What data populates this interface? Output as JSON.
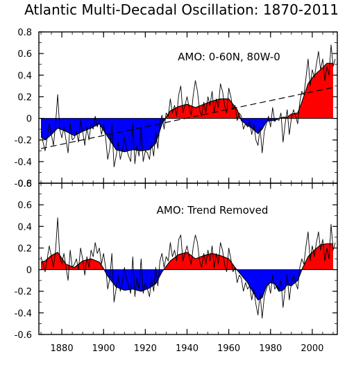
{
  "title": "Atlantic Multi-Decadal Oscillation: 1870-2011",
  "colors": {
    "positive": "#ff0000",
    "negative": "#0000ff",
    "line": "#000000",
    "trend": "#000000"
  },
  "x_ticks": [
    {
      "x": 1880,
      "label": "1880"
    },
    {
      "x": 1900,
      "label": "1900"
    },
    {
      "x": 1920,
      "label": "1920"
    },
    {
      "x": 1940,
      "label": "1940"
    },
    {
      "x": 1960,
      "label": "1960"
    },
    {
      "x": 1980,
      "label": "1980"
    },
    {
      "x": 2000,
      "label": "2000"
    }
  ],
  "chart_data": [
    {
      "type": "area",
      "title": "AMO: 0-60N, 80W-0",
      "xlabel": "",
      "ylabel": "",
      "xlim": [
        1869,
        2012
      ],
      "ylim": [
        -0.6,
        0.8
      ],
      "y_ticks": [
        {
          "y": 0.8,
          "label": "0.8"
        },
        {
          "y": 0.6,
          "label": "0.6"
        },
        {
          "y": 0.4,
          "label": "0.4"
        },
        {
          "y": 0.2,
          "label": "0.2"
        },
        {
          "y": 0,
          "label": "0"
        },
        {
          "y": -0.2,
          "label": "-0.2"
        },
        {
          "y": -0.4,
          "label": "-0.4"
        },
        {
          "y": -0.6,
          "label": "-0.6"
        }
      ],
      "smoothed": {
        "x": [
          1870,
          1872,
          1875,
          1878,
          1882,
          1886,
          1890,
          1894,
          1898,
          1902,
          1906,
          1910,
          1914,
          1918,
          1922,
          1925,
          1928,
          1932,
          1936,
          1940,
          1944,
          1948,
          1952,
          1956,
          1960,
          1964,
          1966,
          1968,
          1971,
          1974,
          1976,
          1978,
          1980,
          1982,
          1984,
          1986,
          1988,
          1990,
          1993,
          1995,
          1998,
          2001,
          2004,
          2007,
          2010
        ],
        "y": [
          -0.17,
          -0.2,
          -0.15,
          -0.09,
          -0.12,
          -0.16,
          -0.12,
          -0.09,
          -0.05,
          -0.17,
          -0.29,
          -0.31,
          -0.29,
          -0.3,
          -0.29,
          -0.23,
          -0.05,
          0.07,
          0.11,
          0.13,
          0.1,
          0.13,
          0.16,
          0.18,
          0.18,
          0.08,
          -0.02,
          -0.05,
          -0.09,
          -0.14,
          -0.1,
          -0.03,
          -0.02,
          -0.02,
          0.0,
          0.01,
          0.01,
          0.04,
          0.05,
          0.15,
          0.32,
          0.4,
          0.45,
          0.51,
          0.51
        ]
      },
      "annual": {
        "x": [
          1870,
          1871,
          1872,
          1873,
          1874,
          1875,
          1876,
          1877,
          1878,
          1879,
          1880,
          1881,
          1882,
          1883,
          1884,
          1885,
          1886,
          1887,
          1888,
          1889,
          1890,
          1891,
          1892,
          1893,
          1894,
          1895,
          1896,
          1897,
          1898,
          1899,
          1900,
          1901,
          1902,
          1903,
          1904,
          1905,
          1906,
          1907,
          1908,
          1909,
          1910,
          1911,
          1912,
          1913,
          1914,
          1915,
          1916,
          1917,
          1918,
          1919,
          1920,
          1921,
          1922,
          1923,
          1924,
          1925,
          1926,
          1927,
          1928,
          1929,
          1930,
          1931,
          1932,
          1933,
          1934,
          1935,
          1936,
          1937,
          1938,
          1939,
          1940,
          1941,
          1942,
          1943,
          1944,
          1945,
          1946,
          1947,
          1948,
          1949,
          1950,
          1951,
          1952,
          1953,
          1954,
          1955,
          1956,
          1957,
          1958,
          1959,
          1960,
          1961,
          1962,
          1963,
          1964,
          1965,
          1966,
          1967,
          1968,
          1969,
          1970,
          1971,
          1972,
          1973,
          1974,
          1975,
          1976,
          1977,
          1978,
          1979,
          1980,
          1981,
          1982,
          1983,
          1984,
          1985,
          1986,
          1987,
          1988,
          1989,
          1990,
          1991,
          1992,
          1993,
          1994,
          1995,
          1996,
          1997,
          1998,
          1999,
          2000,
          2001,
          2002,
          2003,
          2004,
          2005,
          2006,
          2007,
          2008,
          2009,
          2010,
          2011
        ],
        "y": [
          -0.12,
          -0.22,
          -0.3,
          -0.18,
          -0.05,
          -0.15,
          -0.25,
          -0.05,
          0.22,
          -0.1,
          -0.18,
          -0.08,
          -0.2,
          -0.32,
          -0.05,
          -0.2,
          -0.18,
          -0.12,
          -0.22,
          -0.02,
          -0.12,
          -0.25,
          -0.08,
          -0.2,
          -0.05,
          -0.1,
          0.02,
          -0.08,
          -0.02,
          -0.15,
          -0.05,
          -0.18,
          -0.38,
          -0.28,
          -0.05,
          -0.45,
          -0.35,
          -0.22,
          -0.38,
          -0.3,
          -0.18,
          -0.28,
          -0.35,
          -0.4,
          -0.05,
          -0.42,
          -0.25,
          -0.35,
          -0.08,
          -0.4,
          -0.3,
          -0.32,
          -0.38,
          -0.22,
          -0.35,
          -0.12,
          -0.28,
          -0.05,
          0.03,
          -0.1,
          0.05,
          0.02,
          0.18,
          0.05,
          0.12,
          0.02,
          0.22,
          0.3,
          0.05,
          0.12,
          0.2,
          0.1,
          0.03,
          0.22,
          0.35,
          0.25,
          0.08,
          0.02,
          0.15,
          0.05,
          0.2,
          0.12,
          0.25,
          0.05,
          0.18,
          0.1,
          0.32,
          0.25,
          0.12,
          0.05,
          0.28,
          0.2,
          0.08,
          0.12,
          -0.02,
          0.05,
          0.02,
          -0.1,
          -0.05,
          -0.08,
          -0.02,
          -0.15,
          -0.05,
          -0.2,
          -0.25,
          -0.08,
          -0.32,
          -0.12,
          -0.05,
          0.02,
          -0.08,
          0.1,
          -0.03,
          0.0,
          -0.02,
          0.05,
          -0.22,
          -0.05,
          0.08,
          -0.15,
          0.0,
          0.08,
          0.02,
          -0.05,
          0.15,
          0.25,
          0.22,
          0.38,
          0.55,
          0.3,
          0.45,
          0.38,
          0.5,
          0.62,
          0.45,
          0.55,
          0.35,
          0.48,
          0.4,
          0.68,
          0.48,
          0.55
        ]
      },
      "trend": {
        "x": [
          1870,
          2011
        ],
        "y": [
          -0.28,
          0.29
        ]
      }
    },
    {
      "type": "area",
      "title": "AMO: Trend Removed",
      "xlabel": "",
      "ylabel": "",
      "xlim": [
        1869,
        2012
      ],
      "ylim": [
        -0.6,
        0.8
      ],
      "y_ticks": [
        {
          "y": 0.8,
          "label": "0.8"
        },
        {
          "y": 0.6,
          "label": "0.6"
        },
        {
          "y": 0.4,
          "label": "0.4"
        },
        {
          "y": 0.2,
          "label": "0.2"
        },
        {
          "y": 0,
          "label": "0"
        },
        {
          "y": -0.2,
          "label": "-0.2"
        },
        {
          "y": -0.4,
          "label": "-0.4"
        },
        {
          "y": -0.6,
          "label": "-0.6"
        }
      ],
      "smoothed": {
        "x": [
          1870,
          1872,
          1875,
          1878,
          1882,
          1886,
          1890,
          1894,
          1898,
          1900,
          1902,
          1906,
          1910,
          1914,
          1918,
          1922,
          1925,
          1928,
          1932,
          1936,
          1940,
          1944,
          1948,
          1952,
          1956,
          1960,
          1963,
          1966,
          1969,
          1972,
          1974,
          1976,
          1978,
          1980,
          1982,
          1984,
          1986,
          1988,
          1990,
          1993,
          1995,
          1998,
          2001,
          2004,
          2007,
          2010
        ],
        "y": [
          0.07,
          0.08,
          0.13,
          0.16,
          0.05,
          0.02,
          0.08,
          0.1,
          0.07,
          0.01,
          -0.06,
          -0.16,
          -0.19,
          -0.18,
          -0.2,
          -0.17,
          -0.13,
          -0.02,
          0.08,
          0.14,
          0.16,
          0.1,
          0.13,
          0.15,
          0.13,
          0.1,
          0.02,
          -0.05,
          -0.12,
          -0.22,
          -0.28,
          -0.26,
          -0.15,
          -0.12,
          -0.13,
          -0.2,
          -0.19,
          -0.14,
          -0.15,
          -0.1,
          0.0,
          0.12,
          0.18,
          0.23,
          0.24,
          0.24
        ]
      },
      "annual": {
        "x": [
          1870,
          1871,
          1872,
          1873,
          1874,
          1875,
          1876,
          1877,
          1878,
          1879,
          1880,
          1881,
          1882,
          1883,
          1884,
          1885,
          1886,
          1887,
          1888,
          1889,
          1890,
          1891,
          1892,
          1893,
          1894,
          1895,
          1896,
          1897,
          1898,
          1899,
          1900,
          1901,
          1902,
          1903,
          1904,
          1905,
          1906,
          1907,
          1908,
          1909,
          1910,
          1911,
          1912,
          1913,
          1914,
          1915,
          1916,
          1917,
          1918,
          1919,
          1920,
          1921,
          1922,
          1923,
          1924,
          1925,
          1926,
          1927,
          1928,
          1929,
          1930,
          1931,
          1932,
          1933,
          1934,
          1935,
          1936,
          1937,
          1938,
          1939,
          1940,
          1941,
          1942,
          1943,
          1944,
          1945,
          1946,
          1947,
          1948,
          1949,
          1950,
          1951,
          1952,
          1953,
          1954,
          1955,
          1956,
          1957,
          1958,
          1959,
          1960,
          1961,
          1962,
          1963,
          1964,
          1965,
          1966,
          1967,
          1968,
          1969,
          1970,
          1971,
          1972,
          1973,
          1974,
          1975,
          1976,
          1977,
          1978,
          1979,
          1980,
          1981,
          1982,
          1983,
          1984,
          1985,
          1986,
          1987,
          1988,
          1989,
          1990,
          1991,
          1992,
          1993,
          1994,
          1995,
          1996,
          1997,
          1998,
          1999,
          2000,
          2001,
          2002,
          2003,
          2004,
          2005,
          2006,
          2007,
          2008,
          2009,
          2010,
          2011
        ],
        "y": [
          0.12,
          0.05,
          -0.02,
          0.1,
          0.22,
          0.12,
          0.02,
          0.18,
          0.48,
          0.12,
          0.05,
          0.15,
          0.02,
          -0.1,
          0.18,
          0.02,
          0.05,
          0.1,
          0.0,
          0.2,
          0.1,
          -0.05,
          0.12,
          0.02,
          0.18,
          0.12,
          0.25,
          0.15,
          0.2,
          0.05,
          0.15,
          0.02,
          -0.18,
          -0.08,
          0.15,
          -0.3,
          -0.18,
          -0.05,
          -0.2,
          -0.12,
          0.02,
          -0.08,
          -0.15,
          -0.22,
          0.12,
          -0.25,
          -0.08,
          -0.18,
          0.1,
          -0.22,
          -0.12,
          -0.18,
          -0.25,
          -0.08,
          -0.2,
          0.02,
          -0.15,
          0.08,
          0.15,
          0.02,
          0.12,
          0.08,
          0.25,
          0.12,
          0.18,
          0.08,
          0.28,
          0.32,
          0.08,
          0.15,
          0.22,
          0.12,
          0.05,
          0.22,
          0.32,
          0.25,
          0.08,
          0.02,
          0.15,
          0.05,
          0.18,
          0.08,
          0.22,
          0.02,
          0.15,
          0.05,
          0.25,
          0.18,
          0.05,
          -0.02,
          0.2,
          0.1,
          -0.02,
          0.02,
          -0.12,
          -0.05,
          -0.08,
          -0.2,
          -0.12,
          -0.18,
          -0.15,
          -0.28,
          -0.18,
          -0.32,
          -0.42,
          -0.22,
          -0.45,
          -0.25,
          -0.18,
          -0.12,
          -0.22,
          -0.05,
          -0.18,
          -0.15,
          -0.18,
          -0.1,
          -0.35,
          -0.18,
          -0.05,
          -0.28,
          -0.12,
          -0.05,
          -0.12,
          -0.18,
          0.02,
          0.1,
          0.05,
          0.22,
          0.35,
          0.08,
          0.22,
          0.12,
          0.25,
          0.35,
          0.18,
          0.28,
          0.08,
          0.2,
          0.1,
          0.42,
          0.18,
          0.25
        ]
      }
    }
  ]
}
